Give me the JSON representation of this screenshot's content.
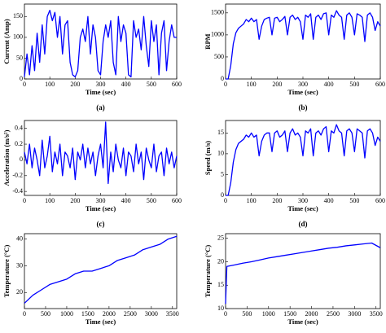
{
  "chart_data": [
    {
      "type": "line",
      "caption": "(a)",
      "x_label": "Time (sec)",
      "y_label": "Current (Amp)",
      "xlim": [
        0,
        600
      ],
      "xticks": [
        0,
        100,
        200,
        300,
        400,
        500,
        600
      ],
      "ylim": [
        0,
        180
      ],
      "yticks": [
        0,
        50,
        100,
        150
      ],
      "series": [
        {
          "color": "#0000ff",
          "x": [
            0,
            10,
            20,
            30,
            40,
            50,
            60,
            70,
            80,
            90,
            100,
            110,
            120,
            130,
            140,
            150,
            160,
            170,
            180,
            190,
            200,
            210,
            220,
            230,
            240,
            250,
            260,
            270,
            280,
            290,
            300,
            310,
            320,
            330,
            340,
            350,
            360,
            370,
            380,
            390,
            400,
            410,
            420,
            430,
            440,
            450,
            460,
            470,
            480,
            490,
            500,
            510,
            520,
            530,
            540,
            550,
            560,
            570,
            580,
            590,
            600
          ],
          "values": [
            5,
            60,
            10,
            80,
            20,
            110,
            40,
            130,
            60,
            150,
            165,
            140,
            160,
            100,
            150,
            60,
            130,
            140,
            40,
            10,
            5,
            20,
            100,
            120,
            90,
            150,
            60,
            130,
            100,
            20,
            10,
            90,
            130,
            100,
            140,
            40,
            10,
            150,
            90,
            130,
            110,
            10,
            5,
            140,
            100,
            120,
            70,
            150,
            80,
            30,
            140,
            90,
            130,
            10,
            110,
            140,
            20,
            90,
            130,
            100,
            100
          ]
        }
      ]
    },
    {
      "type": "line",
      "caption": "(b)",
      "x_label": "Time (sec)",
      "y_label": "RPM",
      "xlim": [
        0,
        600
      ],
      "xticks": [
        0,
        100,
        200,
        300,
        400,
        500,
        600
      ],
      "ylim": [
        0,
        1700
      ],
      "yticks": [
        0,
        500,
        1000,
        1500
      ],
      "series": [
        {
          "color": "#0000ff",
          "x": [
            0,
            10,
            20,
            30,
            40,
            50,
            60,
            70,
            80,
            90,
            100,
            110,
            120,
            130,
            140,
            150,
            160,
            170,
            180,
            190,
            200,
            210,
            220,
            230,
            240,
            250,
            260,
            270,
            280,
            290,
            300,
            310,
            320,
            330,
            340,
            350,
            360,
            370,
            380,
            390,
            400,
            410,
            420,
            430,
            440,
            450,
            460,
            470,
            480,
            490,
            500,
            510,
            520,
            530,
            540,
            550,
            560,
            570,
            580,
            590,
            600
          ],
          "values": [
            0,
            0,
            300,
            800,
            1050,
            1150,
            1200,
            1250,
            1350,
            1300,
            1380,
            1300,
            1350,
            900,
            1200,
            1350,
            1380,
            1400,
            1000,
            1380,
            1400,
            1300,
            1350,
            1420,
            1000,
            1400,
            1450,
            1350,
            1400,
            1300,
            900,
            1450,
            1400,
            1480,
            900,
            1400,
            1450,
            1350,
            1480,
            1500,
            1000,
            1450,
            1400,
            1550,
            1450,
            1400,
            900,
            1450,
            1500,
            1400,
            1000,
            1480,
            1450,
            1400,
            850,
            1450,
            1500,
            1400,
            1100,
            1300,
            1200
          ]
        }
      ]
    },
    {
      "type": "line",
      "caption": "(c)",
      "x_label": "Time (sec)",
      "y_label": "Acceleration (m/s²)",
      "xlim": [
        0,
        600
      ],
      "xticks": [
        0,
        100,
        200,
        300,
        400,
        500,
        600
      ],
      "ylim": [
        -0.45,
        0.5
      ],
      "yticks": [
        -0.4,
        -0.2,
        0,
        0.2,
        0.4
      ],
      "series": [
        {
          "color": "#0000ff",
          "x": [
            0,
            10,
            20,
            30,
            40,
            50,
            60,
            70,
            80,
            90,
            100,
            110,
            120,
            130,
            140,
            150,
            160,
            170,
            180,
            190,
            200,
            210,
            220,
            230,
            240,
            250,
            260,
            270,
            280,
            290,
            300,
            310,
            320,
            330,
            340,
            350,
            360,
            370,
            380,
            390,
            400,
            410,
            420,
            430,
            440,
            450,
            460,
            470,
            480,
            490,
            500,
            510,
            520,
            530,
            540,
            550,
            560,
            570,
            580,
            590,
            600
          ],
          "values": [
            0.1,
            -0.05,
            0.2,
            -0.1,
            0.15,
            0,
            -0.2,
            0.25,
            -0.1,
            0.05,
            0.3,
            -0.15,
            0.1,
            -0.05,
            0.2,
            -0.2,
            0.1,
            0.05,
            -0.1,
            0.15,
            -0.25,
            0.1,
            0,
            0.2,
            -0.1,
            0.15,
            -0.05,
            0.1,
            -0.2,
            0.05,
            0.2,
            -0.1,
            0.48,
            -0.3,
            0.1,
            -0.15,
            0.2,
            0,
            -0.1,
            0.15,
            -0.2,
            0.1,
            0.05,
            -0.15,
            0.2,
            -0.05,
            0.1,
            -0.25,
            0.15,
            0,
            -0.1,
            0.2,
            -0.15,
            0.05,
            0.1,
            -0.2,
            0.15,
            -0.05,
            0.1,
            -0.1,
            0.05
          ]
        }
      ]
    },
    {
      "type": "line",
      "caption": "(d)",
      "x_label": "Time (sec)",
      "y_label": "Speed (m/s)",
      "xlim": [
        0,
        600
      ],
      "xticks": [
        0,
        100,
        200,
        300,
        400,
        500,
        600
      ],
      "ylim": [
        0,
        18
      ],
      "yticks": [
        0,
        5,
        10,
        15
      ],
      "series": [
        {
          "color": "#0000ff",
          "x": [
            0,
            10,
            20,
            30,
            40,
            50,
            60,
            70,
            80,
            90,
            100,
            110,
            120,
            130,
            140,
            150,
            160,
            170,
            180,
            190,
            200,
            210,
            220,
            230,
            240,
            250,
            260,
            270,
            280,
            290,
            300,
            310,
            320,
            330,
            340,
            350,
            360,
            370,
            380,
            390,
            400,
            410,
            420,
            430,
            440,
            450,
            460,
            470,
            480,
            490,
            500,
            510,
            520,
            530,
            540,
            550,
            560,
            570,
            580,
            590,
            600
          ],
          "values": [
            0,
            0,
            3,
            8,
            11,
            12.5,
            13,
            13.5,
            14.5,
            14,
            15,
            14,
            14.5,
            9.5,
            13,
            14.5,
            15,
            15,
            10.5,
            15,
            15.5,
            14,
            14.5,
            15.5,
            10.5,
            15,
            16,
            14.5,
            15,
            14,
            9.5,
            15.5,
            15,
            16,
            9.5,
            15,
            15.5,
            14.5,
            16,
            16.5,
            10.5,
            15.5,
            15,
            17,
            15.5,
            15,
            9.5,
            15.5,
            16,
            15,
            10.5,
            16,
            15.5,
            15,
            9,
            15.5,
            16,
            15,
            12,
            14,
            13
          ]
        }
      ]
    },
    {
      "type": "line",
      "caption": "(e)",
      "x_label": "Time (sec)",
      "y_label": "Temperature (°C)",
      "xlim": [
        0,
        3600
      ],
      "xticks": [
        0,
        500,
        1000,
        1500,
        2000,
        2500,
        3000,
        3500
      ],
      "ylim": [
        14,
        42
      ],
      "yticks": [
        20,
        30,
        40
      ],
      "series": [
        {
          "color": "#0000ff",
          "x": [
            0,
            200,
            400,
            600,
            800,
            1000,
            1200,
            1400,
            1600,
            1800,
            2000,
            2200,
            2400,
            2600,
            2800,
            3000,
            3200,
            3400,
            3600
          ],
          "values": [
            16,
            19,
            21,
            23,
            24,
            25,
            27,
            28,
            28,
            29,
            30,
            32,
            33,
            34,
            36,
            37,
            38,
            40,
            41
          ]
        }
      ]
    },
    {
      "type": "line",
      "caption": "(f)",
      "x_label": "Time (sec)",
      "y_label": "Temperature (°C)",
      "xlim": [
        0,
        3600
      ],
      "xticks": [
        0,
        500,
        1000,
        1500,
        2000,
        2500,
        3000,
        3500
      ],
      "ylim": [
        10,
        26
      ],
      "yticks": [
        10,
        15,
        20,
        25
      ],
      "series": [
        {
          "color": "#0000ff",
          "x": [
            0,
            30,
            200,
            400,
            600,
            800,
            1000,
            1200,
            1400,
            1600,
            1800,
            2000,
            2200,
            2400,
            2600,
            2800,
            3000,
            3200,
            3400,
            3600
          ],
          "values": [
            11,
            19,
            19.3,
            19.7,
            20,
            20.4,
            20.8,
            21.1,
            21.4,
            21.7,
            22,
            22.3,
            22.6,
            22.9,
            23.1,
            23.4,
            23.6,
            23.8,
            24,
            23
          ]
        }
      ]
    }
  ]
}
